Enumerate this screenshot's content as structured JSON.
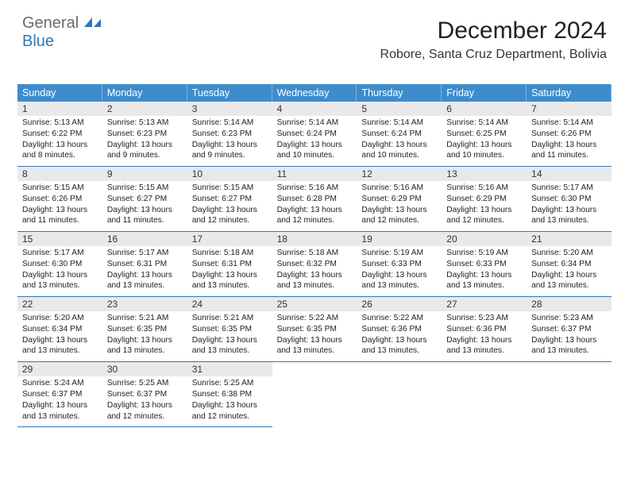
{
  "logo": {
    "text1": "General",
    "text2": "Blue",
    "accent": "#2f79b9",
    "gray": "#6b6b6b"
  },
  "title": "December 2024",
  "subtitle": "Robore, Santa Cruz Department, Bolivia",
  "colors": {
    "header_bg": "#3e8ccc",
    "header_border": "#7fb1da",
    "row_divider": "#2f79b9",
    "num_bg": "#e9e9e9",
    "text": "#222222"
  },
  "day_labels": [
    "Sunday",
    "Monday",
    "Tuesday",
    "Wednesday",
    "Thursday",
    "Friday",
    "Saturday"
  ],
  "grid": {
    "cols": 7,
    "rows": 5,
    "cell_font_size_pt": 7.7,
    "num_font_size_pt": 9,
    "label_font_size_pt": 9.4
  },
  "days": [
    {
      "n": 1,
      "sr": "5:13 AM",
      "ss": "6:22 PM",
      "dl": "13 hours and 8 minutes."
    },
    {
      "n": 2,
      "sr": "5:13 AM",
      "ss": "6:23 PM",
      "dl": "13 hours and 9 minutes."
    },
    {
      "n": 3,
      "sr": "5:14 AM",
      "ss": "6:23 PM",
      "dl": "13 hours and 9 minutes."
    },
    {
      "n": 4,
      "sr": "5:14 AM",
      "ss": "6:24 PM",
      "dl": "13 hours and 10 minutes."
    },
    {
      "n": 5,
      "sr": "5:14 AM",
      "ss": "6:24 PM",
      "dl": "13 hours and 10 minutes."
    },
    {
      "n": 6,
      "sr": "5:14 AM",
      "ss": "6:25 PM",
      "dl": "13 hours and 10 minutes."
    },
    {
      "n": 7,
      "sr": "5:14 AM",
      "ss": "6:26 PM",
      "dl": "13 hours and 11 minutes."
    },
    {
      "n": 8,
      "sr": "5:15 AM",
      "ss": "6:26 PM",
      "dl": "13 hours and 11 minutes."
    },
    {
      "n": 9,
      "sr": "5:15 AM",
      "ss": "6:27 PM",
      "dl": "13 hours and 11 minutes."
    },
    {
      "n": 10,
      "sr": "5:15 AM",
      "ss": "6:27 PM",
      "dl": "13 hours and 12 minutes."
    },
    {
      "n": 11,
      "sr": "5:16 AM",
      "ss": "6:28 PM",
      "dl": "13 hours and 12 minutes."
    },
    {
      "n": 12,
      "sr": "5:16 AM",
      "ss": "6:29 PM",
      "dl": "13 hours and 12 minutes."
    },
    {
      "n": 13,
      "sr": "5:16 AM",
      "ss": "6:29 PM",
      "dl": "13 hours and 12 minutes."
    },
    {
      "n": 14,
      "sr": "5:17 AM",
      "ss": "6:30 PM",
      "dl": "13 hours and 13 minutes."
    },
    {
      "n": 15,
      "sr": "5:17 AM",
      "ss": "6:30 PM",
      "dl": "13 hours and 13 minutes."
    },
    {
      "n": 16,
      "sr": "5:17 AM",
      "ss": "6:31 PM",
      "dl": "13 hours and 13 minutes."
    },
    {
      "n": 17,
      "sr": "5:18 AM",
      "ss": "6:31 PM",
      "dl": "13 hours and 13 minutes."
    },
    {
      "n": 18,
      "sr": "5:18 AM",
      "ss": "6:32 PM",
      "dl": "13 hours and 13 minutes."
    },
    {
      "n": 19,
      "sr": "5:19 AM",
      "ss": "6:33 PM",
      "dl": "13 hours and 13 minutes."
    },
    {
      "n": 20,
      "sr": "5:19 AM",
      "ss": "6:33 PM",
      "dl": "13 hours and 13 minutes."
    },
    {
      "n": 21,
      "sr": "5:20 AM",
      "ss": "6:34 PM",
      "dl": "13 hours and 13 minutes."
    },
    {
      "n": 22,
      "sr": "5:20 AM",
      "ss": "6:34 PM",
      "dl": "13 hours and 13 minutes."
    },
    {
      "n": 23,
      "sr": "5:21 AM",
      "ss": "6:35 PM",
      "dl": "13 hours and 13 minutes."
    },
    {
      "n": 24,
      "sr": "5:21 AM",
      "ss": "6:35 PM",
      "dl": "13 hours and 13 minutes."
    },
    {
      "n": 25,
      "sr": "5:22 AM",
      "ss": "6:35 PM",
      "dl": "13 hours and 13 minutes."
    },
    {
      "n": 26,
      "sr": "5:22 AM",
      "ss": "6:36 PM",
      "dl": "13 hours and 13 minutes."
    },
    {
      "n": 27,
      "sr": "5:23 AM",
      "ss": "6:36 PM",
      "dl": "13 hours and 13 minutes."
    },
    {
      "n": 28,
      "sr": "5:23 AM",
      "ss": "6:37 PM",
      "dl": "13 hours and 13 minutes."
    },
    {
      "n": 29,
      "sr": "5:24 AM",
      "ss": "6:37 PM",
      "dl": "13 hours and 13 minutes."
    },
    {
      "n": 30,
      "sr": "5:25 AM",
      "ss": "6:37 PM",
      "dl": "13 hours and 12 minutes."
    },
    {
      "n": 31,
      "sr": "5:25 AM",
      "ss": "6:38 PM",
      "dl": "13 hours and 12 minutes."
    }
  ],
  "labels": {
    "sunrise": "Sunrise:",
    "sunset": "Sunset:",
    "daylight": "Daylight:"
  }
}
